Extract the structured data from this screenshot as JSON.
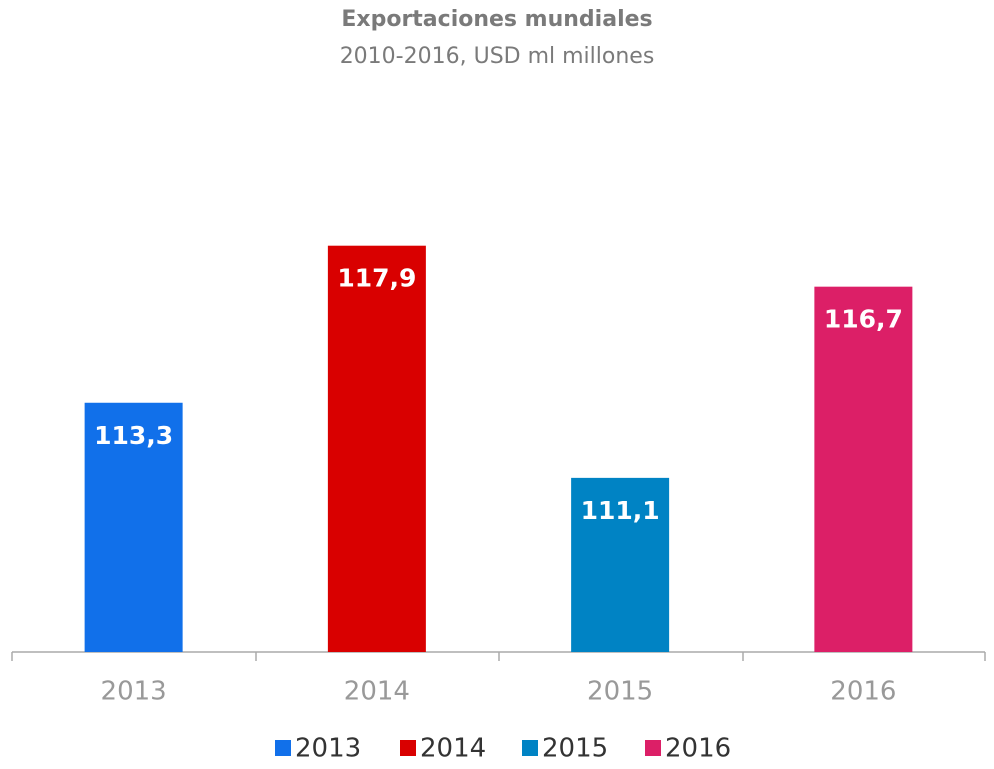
{
  "chart_data": {
    "type": "bar",
    "title": "Exportaciones  mundiales",
    "subtitle": "2010-2016, USD ml millones",
    "categories": [
      "2013",
      "2014",
      "2015",
      "2016"
    ],
    "values": [
      113.3,
      117.9,
      111.1,
      116.7
    ],
    "value_labels": [
      "113,3",
      "117,9",
      "111,1",
      "116,7"
    ],
    "colors": [
      "#1170ea",
      "#d90000",
      "#0083c4",
      "#dc1f67"
    ],
    "ylim": [
      106,
      120
    ],
    "legend": "bottom"
  }
}
